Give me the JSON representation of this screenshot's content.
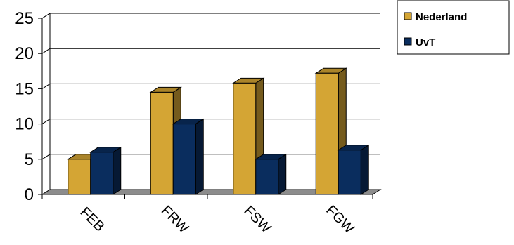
{
  "chart_data": {
    "type": "bar",
    "categories": [
      "FEB",
      "FRW",
      "FSW",
      "FGW"
    ],
    "series": [
      {
        "name": "Nederland",
        "values": [
          5,
          14.5,
          15.8,
          17.2
        ],
        "color": "#d4a534"
      },
      {
        "name": "UvT",
        "values": [
          6,
          10,
          5,
          6.3
        ],
        "color": "#0a2d5e"
      }
    ],
    "ylim": [
      0,
      25
    ],
    "yticks": [
      0,
      5,
      10,
      15,
      20,
      25
    ],
    "grid": true,
    "legend": "top-right",
    "style": "3d-clustered"
  }
}
